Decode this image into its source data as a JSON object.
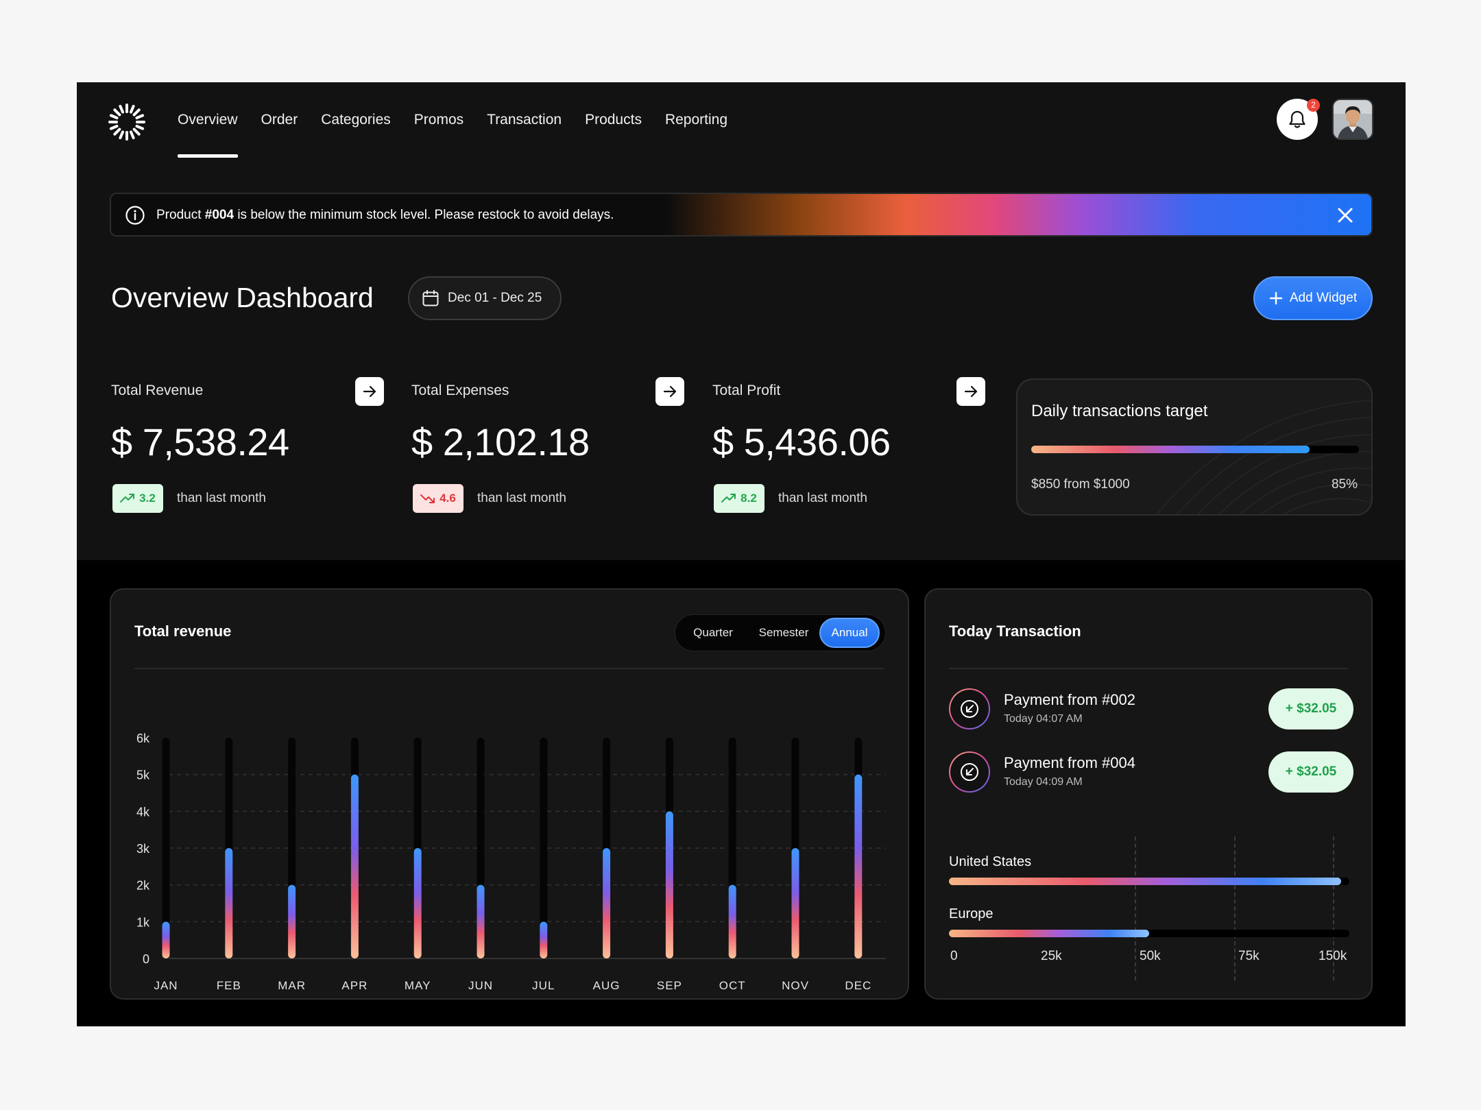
{
  "nav": {
    "items": [
      "Overview",
      "Order",
      "Categories",
      "Promos",
      "Transaction",
      "Products",
      "Reporting"
    ],
    "active_index": 0,
    "notifications_count": "2"
  },
  "alert": {
    "text_before": "Product ",
    "text_bold": "#004",
    "text_after": " is below the minimum stock level. Please restock to avoid delays."
  },
  "header": {
    "title": "Overview Dashboard",
    "date_range": "Dec 01 - Dec 25",
    "add_widget": "Add Widget"
  },
  "stats": [
    {
      "label": "Total Revenue",
      "value": "$ 7,538.24",
      "change": "3.2",
      "trend": "up",
      "sub": "than last month"
    },
    {
      "label": "Total Expenses",
      "value": "$ 2,102.18",
      "change": "4.6",
      "trend": "down",
      "sub": "than last month"
    },
    {
      "label": "Total Profit",
      "value": "$ 5,436.06",
      "change": "8.2",
      "trend": "up",
      "sub": "than last month"
    }
  ],
  "daily_target": {
    "title": "Daily transactions target",
    "from_text": "$850 from $1000",
    "percent_text": "85%",
    "progress": 0.85
  },
  "revenue": {
    "title": "Total revenue",
    "tabs": [
      "Quarter",
      "Semester",
      "Annual"
    ],
    "active_tab": 2
  },
  "chart_data": {
    "type": "bar",
    "categories": [
      "JAN",
      "FEB",
      "MAR",
      "APR",
      "MAY",
      "JUN",
      "JUL",
      "AUG",
      "SEP",
      "OCT",
      "NOV",
      "DEC"
    ],
    "values": [
      1000,
      3000,
      2000,
      5000,
      3000,
      2000,
      1000,
      3000,
      4000,
      2000,
      3000,
      5000
    ],
    "y_ticks": [
      "0",
      "1k",
      "2k",
      "3k",
      "4k",
      "5k",
      "6k"
    ],
    "ylim": [
      0,
      6000
    ],
    "grid": "dashed"
  },
  "transactions": {
    "title": "Today Transaction",
    "items": [
      {
        "name": "Payment from #002",
        "time": "Today 04:07 AM",
        "amount": "+ $32.05"
      },
      {
        "name": "Payment from #004",
        "time": "Today 04:09 AM",
        "amount": "+ $32.05"
      }
    ],
    "regions": [
      {
        "name": "United States",
        "progress": 0.98
      },
      {
        "name": "Europe",
        "progress": 0.5
      }
    ],
    "x_ticks": [
      "0",
      "25k",
      "50k",
      "75k",
      "150k"
    ]
  },
  "colors": {
    "accent": "#1f6ef0",
    "positive": "#25a54f",
    "negative": "#e0353a",
    "background": "#121212"
  }
}
